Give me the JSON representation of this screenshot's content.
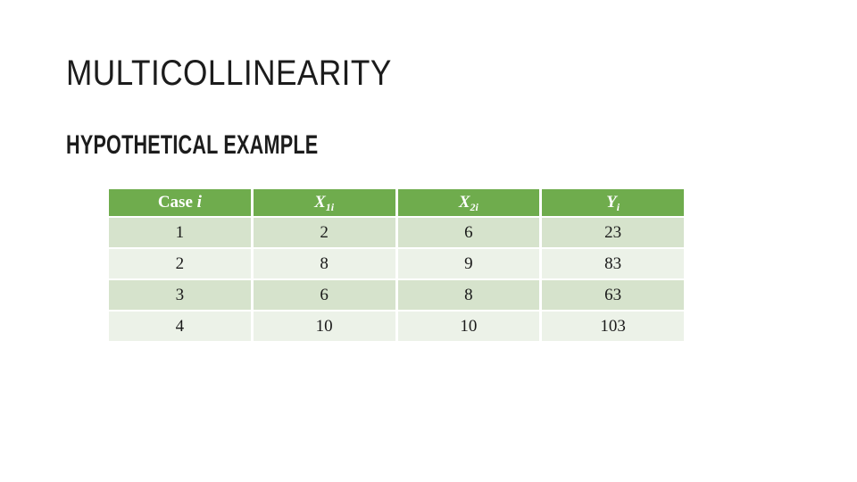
{
  "slide": {
    "title": "MULTICOLLINEARITY",
    "subtitle": "HYPOTHETICAL EXAMPLE"
  },
  "table": {
    "headers": [
      {
        "text": "Case ",
        "italic": "i",
        "sub": ""
      },
      {
        "text": "",
        "italic": "X",
        "sub": "1i"
      },
      {
        "text": "",
        "italic": "X",
        "sub": "2i"
      },
      {
        "text": "",
        "italic": "Y",
        "sub": "i"
      }
    ],
    "rows": [
      [
        "1",
        "2",
        "6",
        "23"
      ],
      [
        "2",
        "8",
        "9",
        "83"
      ],
      [
        "3",
        "6",
        "8",
        "63"
      ],
      [
        "4",
        "10",
        "10",
        "103"
      ]
    ]
  },
  "colors": {
    "header_bg": "#6FAC4D",
    "header_text": "#FFFFFF",
    "row_odd_bg": "#D6E3CC",
    "row_even_bg": "#ECF2E8",
    "body_text": "#1A1A1A",
    "title_text": "#1C1C1C"
  }
}
